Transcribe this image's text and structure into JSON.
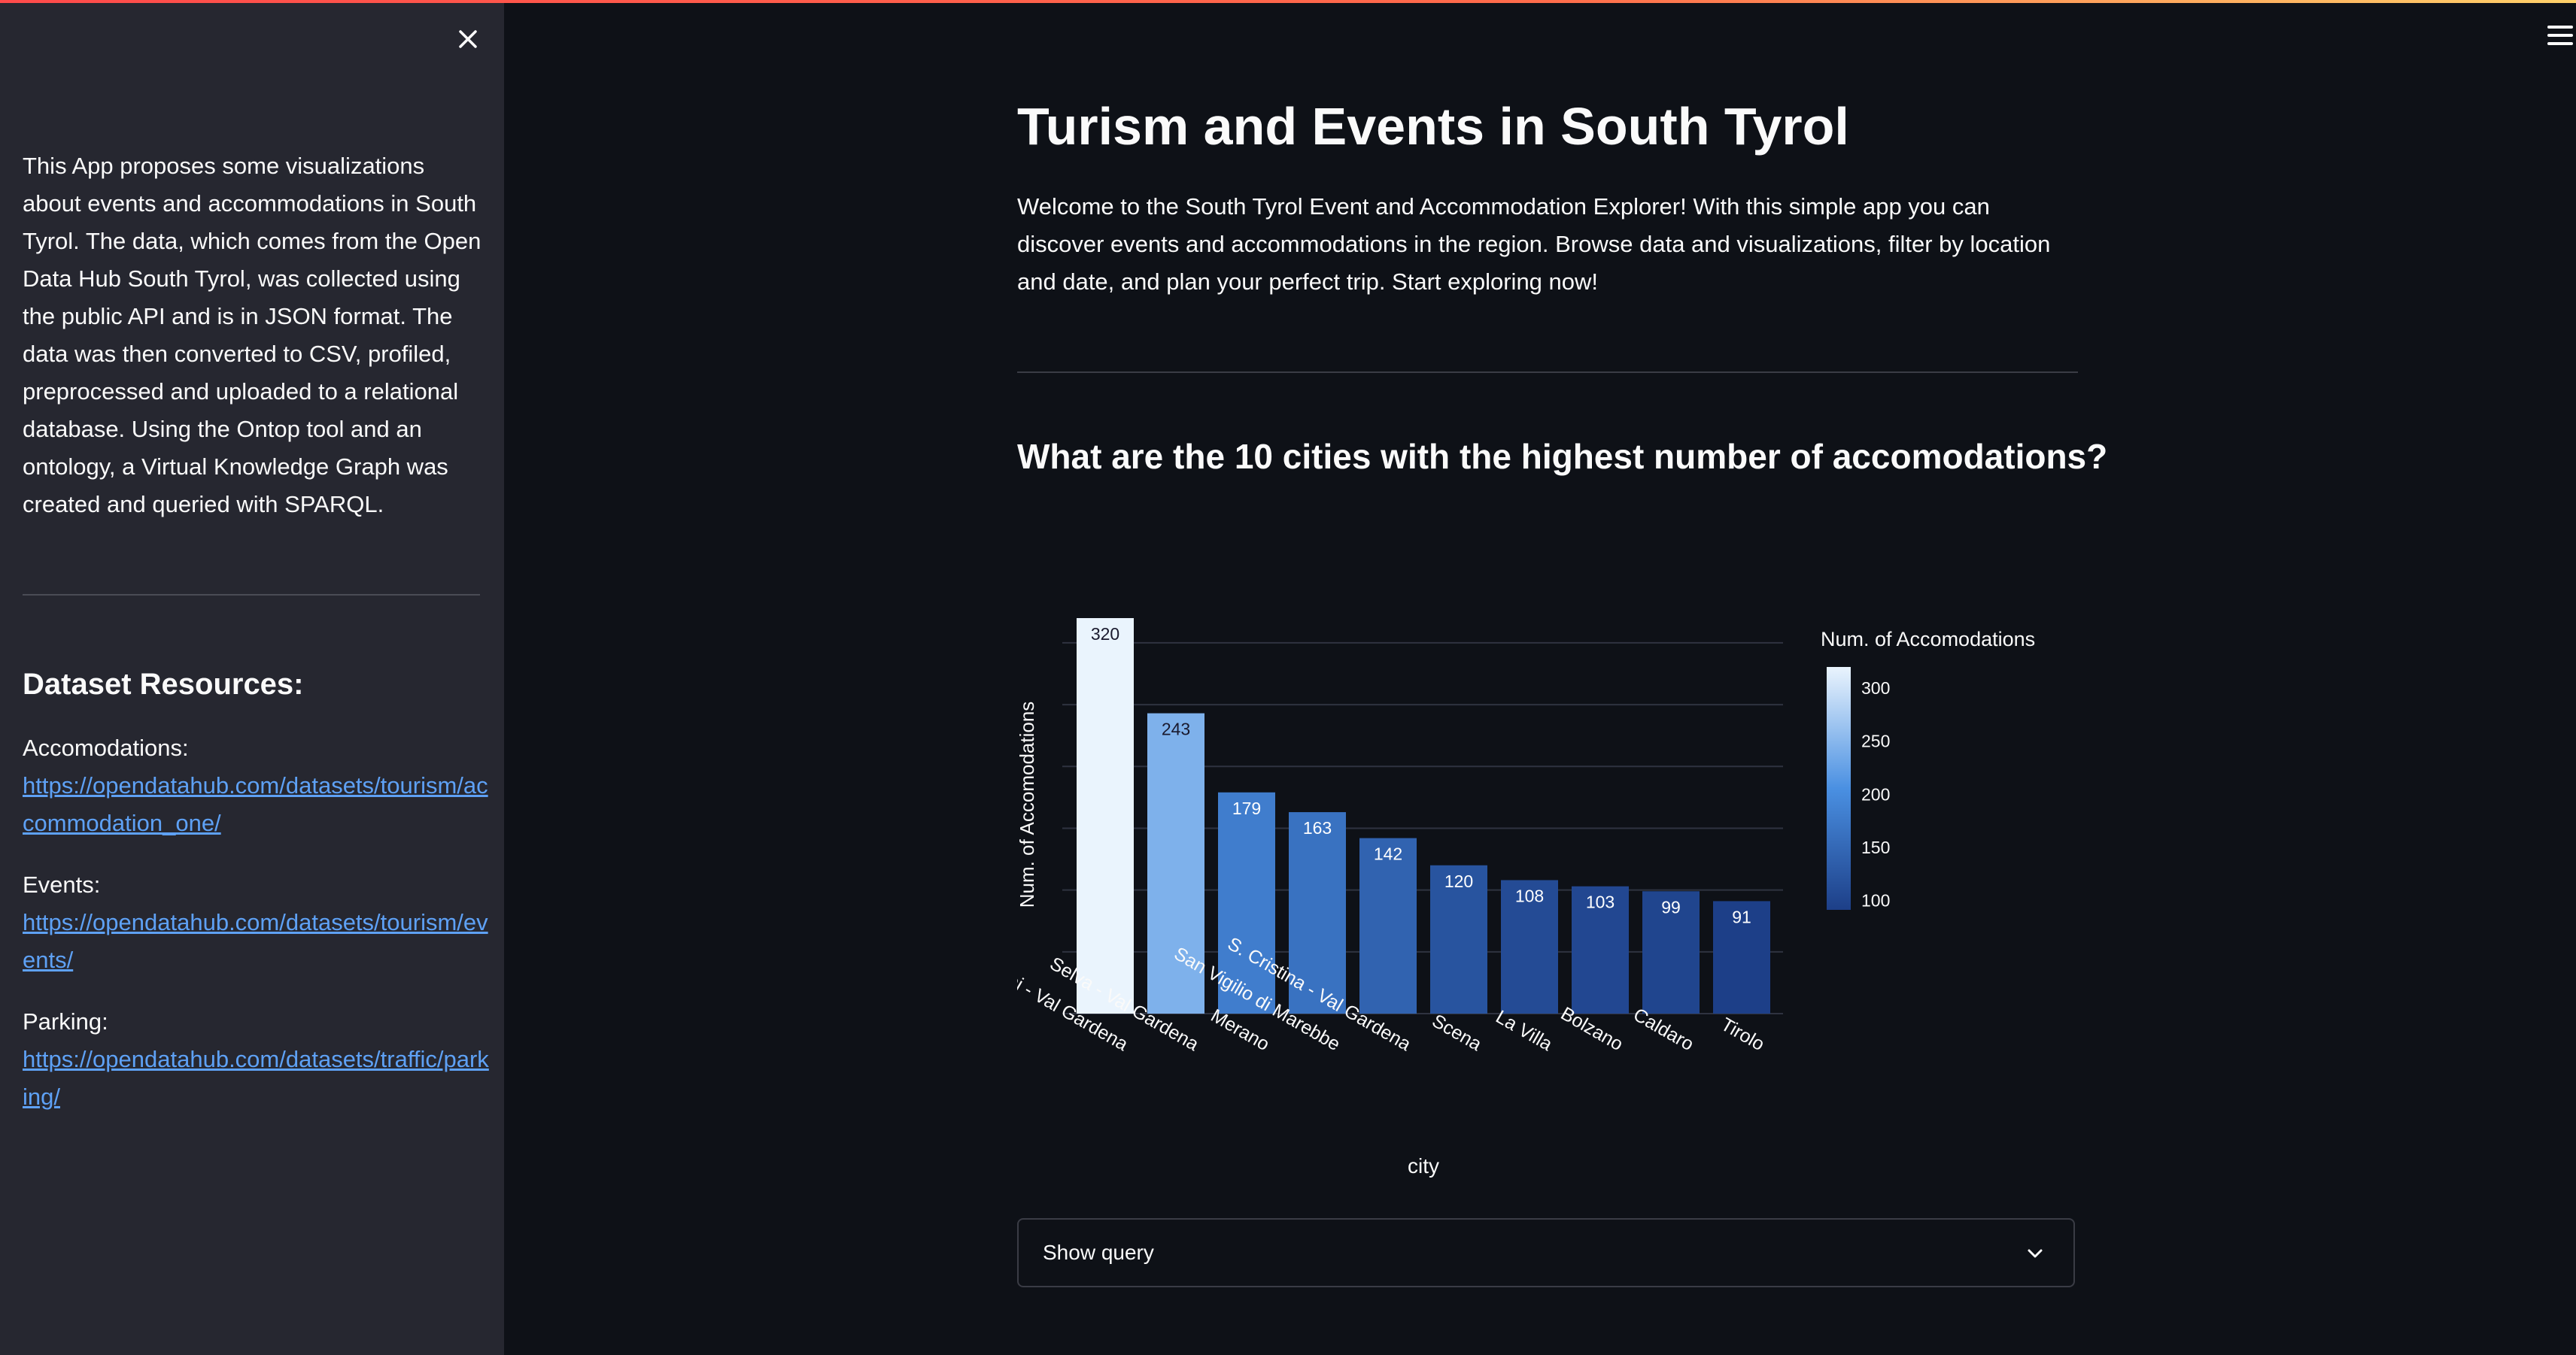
{
  "sidebar": {
    "description": "This App proposes some visualizations about events and accommodations in South Tyrol. The data, which comes from the Open Data Hub South Tyrol, was collected using the public API and is in JSON format. The data was then converted to CSV, profiled, preprocessed and uploaded to a relational database. Using the Ontop tool and an ontology, a Virtual Knowledge Graph was created and queried with SPARQL.",
    "resources_title": "Dataset Resources:",
    "resources": [
      {
        "label": "Accomodations:",
        "url": "https://opendatahub.com/datasets/tourism/accommodation_one/"
      },
      {
        "label": "Events:",
        "url": "https://opendatahub.com/datasets/tourism/events/"
      },
      {
        "label": "Parking:",
        "url": "https://opendatahub.com/datasets/traffic/parking/"
      }
    ]
  },
  "header": {
    "title": "Turism and Events in South Tyrol",
    "intro": "Welcome to the South Tyrol Event and Accommodation Explorer! With this simple app you can discover events and accommodations in the region. Browse data and visualizations, filter by location and date, and plan your perfect trip. Start exploring now!"
  },
  "section": {
    "question": "What are the 10 cities with the highest number of accomodations?"
  },
  "expander": {
    "label": "Show query"
  },
  "icons": {
    "close": "close-icon",
    "menu": "hamburger-menu-icon",
    "expand": "chevron-down-icon"
  },
  "chart_data": {
    "type": "bar",
    "categories": [
      "Ortisei - Val Gardena",
      "Selva - Val Gardena",
      "Merano",
      "San Vigilio di Marebbe",
      "S. Cristina - Val Gardena",
      "Scena",
      "La Villa",
      "Bolzano",
      "Caldaro",
      "Tirolo"
    ],
    "values": [
      320,
      243,
      179,
      163,
      142,
      120,
      108,
      103,
      99,
      91
    ],
    "xlabel": "city",
    "ylabel": "Num. of Accomodations",
    "ylim": [
      0,
      320
    ],
    "grid": true,
    "legend": {
      "title": "Num. of Accomodations",
      "type": "colorbar",
      "ticks": [
        300,
        250,
        200,
        150,
        100
      ],
      "placement": "right"
    },
    "colors": {
      "low": "#1d3f88",
      "mid": "#4a90e2",
      "high": "#eaf4fd"
    },
    "color_range": [
      91,
      320
    ]
  }
}
